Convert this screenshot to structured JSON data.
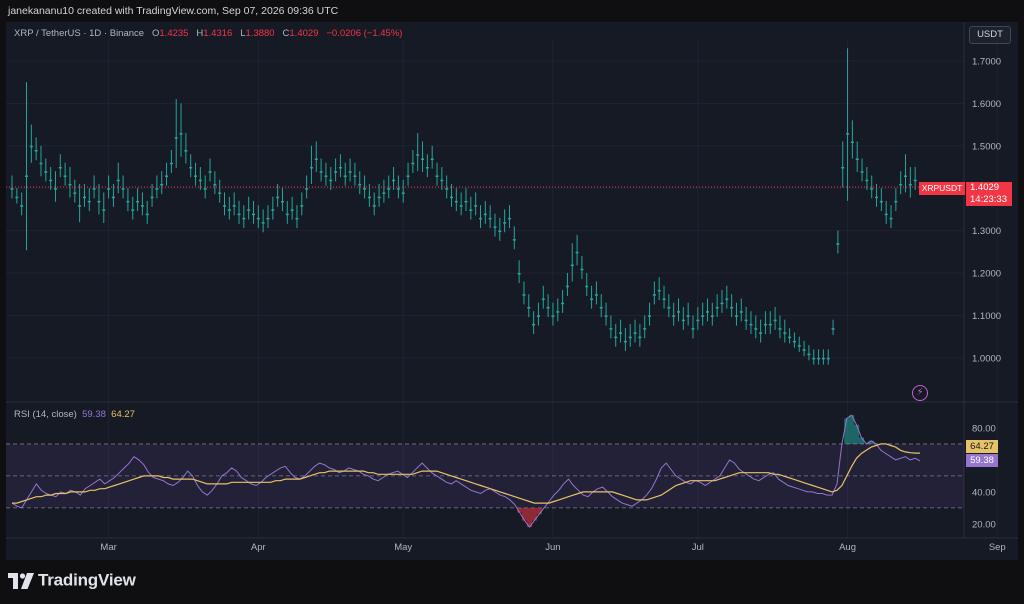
{
  "header": {
    "text": "janekananu10 created with TradingView.com, Sep 07, 2026 09:36 UTC"
  },
  "legend": {
    "symbol": "XRP / TetherUS · 1D · Binance",
    "o_label": "O",
    "o": "1.4235",
    "h_label": "H",
    "h": "1.4316",
    "l_label": "L",
    "l": "1.3880",
    "c_label": "C",
    "c": "1.4029",
    "change": "−0.0206 (−1.45%)"
  },
  "currency_button": "USDT",
  "price_badge": {
    "symbol": "XRPUSDT",
    "price": "1.4029",
    "countdown": "14:23:33"
  },
  "rsi_legend": {
    "label": "RSI (14, close)",
    "rsi": "59.38",
    "ma": "64.27"
  },
  "brand": "TradingView",
  "colors": {
    "up": "#26a69a",
    "down": "#f23645",
    "rsi": "#9575cd",
    "rsi_ma": "#e8c266",
    "background": "#161a25"
  },
  "chart_data": [
    {
      "type": "candlestick",
      "ylim": [
        0.91,
        1.74
      ],
      "yticks": [
        "1.7000",
        "1.6000",
        "1.5000",
        "1.4000",
        "1.3000",
        "1.2000",
        "1.1000",
        "1.0000"
      ],
      "ytick_values": [
        1.7,
        1.6,
        1.5,
        1.4,
        1.3,
        1.2,
        1.1,
        1.0
      ],
      "xticks": [
        {
          "label": "Mar",
          "index": 20
        },
        {
          "label": "Apr",
          "index": 51
        },
        {
          "label": "May",
          "index": 81
        },
        {
          "label": "Jun",
          "index": 112
        },
        {
          "label": "Jul",
          "index": 142
        },
        {
          "label": "Aug",
          "index": 173
        },
        {
          "label": "Sep",
          "index": 204
        }
      ],
      "last_price": 1.4029,
      "series_close": [
        1.4,
        1.38,
        1.36,
        1.43,
        1.5,
        1.49,
        1.46,
        1.44,
        1.42,
        1.4,
        1.45,
        1.43,
        1.41,
        1.39,
        1.36,
        1.38,
        1.37,
        1.4,
        1.37,
        1.35,
        1.4,
        1.38,
        1.42,
        1.4,
        1.37,
        1.35,
        1.37,
        1.36,
        1.34,
        1.38,
        1.4,
        1.41,
        1.43,
        1.46,
        1.52,
        1.53,
        1.49,
        1.45,
        1.43,
        1.42,
        1.4,
        1.44,
        1.41,
        1.39,
        1.36,
        1.35,
        1.36,
        1.34,
        1.33,
        1.35,
        1.34,
        1.33,
        1.32,
        1.33,
        1.35,
        1.38,
        1.37,
        1.34,
        1.35,
        1.33,
        1.36,
        1.4,
        1.45,
        1.47,
        1.44,
        1.43,
        1.42,
        1.44,
        1.45,
        1.43,
        1.44,
        1.43,
        1.41,
        1.4,
        1.38,
        1.36,
        1.38,
        1.39,
        1.4,
        1.42,
        1.4,
        1.39,
        1.43,
        1.46,
        1.48,
        1.47,
        1.45,
        1.47,
        1.43,
        1.42,
        1.4,
        1.38,
        1.37,
        1.36,
        1.37,
        1.35,
        1.36,
        1.33,
        1.34,
        1.33,
        1.31,
        1.3,
        1.32,
        1.33,
        1.28,
        1.2,
        1.15,
        1.12,
        1.08,
        1.1,
        1.14,
        1.12,
        1.1,
        1.11,
        1.13,
        1.17,
        1.22,
        1.25,
        1.21,
        1.17,
        1.14,
        1.15,
        1.12,
        1.1,
        1.07,
        1.05,
        1.06,
        1.04,
        1.05,
        1.06,
        1.05,
        1.07,
        1.1,
        1.15,
        1.16,
        1.14,
        1.12,
        1.1,
        1.11,
        1.09,
        1.1,
        1.07,
        1.09,
        1.1,
        1.11,
        1.1,
        1.12,
        1.13,
        1.14,
        1.12,
        1.1,
        1.11,
        1.09,
        1.08,
        1.07,
        1.06,
        1.08,
        1.08,
        1.09,
        1.07,
        1.06,
        1.05,
        1.04,
        1.03,
        1.02,
        1.01,
        1.0,
        1.0,
        1.0,
        1.0,
        1.07,
        1.27,
        1.45,
        1.53,
        1.51,
        1.47,
        1.44,
        1.42,
        1.4,
        1.38,
        1.37,
        1.34,
        1.33,
        1.37,
        1.41,
        1.43,
        1.41,
        1.42,
        1.4
      ],
      "series_open": [
        1.4,
        1.38,
        1.36,
        1.43,
        1.5,
        1.49,
        1.46,
        1.44,
        1.42,
        1.4,
        1.45,
        1.43,
        1.41,
        1.39,
        1.36,
        1.38,
        1.37,
        1.4,
        1.37,
        1.35,
        1.4,
        1.38,
        1.42,
        1.4,
        1.37,
        1.35,
        1.37,
        1.36,
        1.34,
        1.38,
        1.4,
        1.41,
        1.43,
        1.46,
        1.52,
        1.53,
        1.49,
        1.45,
        1.43,
        1.42,
        1.4,
        1.44,
        1.41,
        1.39,
        1.36,
        1.35,
        1.36,
        1.34,
        1.33,
        1.35,
        1.34,
        1.33,
        1.32,
        1.33,
        1.35,
        1.38,
        1.37,
        1.34,
        1.35,
        1.33,
        1.36,
        1.4,
        1.45,
        1.47,
        1.44,
        1.43,
        1.42,
        1.44,
        1.45,
        1.43,
        1.44,
        1.43,
        1.41,
        1.4,
        1.38,
        1.36,
        1.38,
        1.39,
        1.4,
        1.42,
        1.4,
        1.39,
        1.43,
        1.46,
        1.48,
        1.47,
        1.45,
        1.47,
        1.43,
        1.42,
        1.4,
        1.38,
        1.37,
        1.36,
        1.37,
        1.35,
        1.36,
        1.33,
        1.34,
        1.33,
        1.31,
        1.3,
        1.32,
        1.33,
        1.28,
        1.2,
        1.15,
        1.12,
        1.08,
        1.1,
        1.14,
        1.12,
        1.1,
        1.11,
        1.13,
        1.17,
        1.22,
        1.25,
        1.21,
        1.17,
        1.14,
        1.15,
        1.12,
        1.1,
        1.07,
        1.05,
        1.06,
        1.04,
        1.05,
        1.06,
        1.05,
        1.07,
        1.1,
        1.15,
        1.16,
        1.14,
        1.12,
        1.1,
        1.11,
        1.09,
        1.1,
        1.07,
        1.09,
        1.1,
        1.11,
        1.1,
        1.12,
        1.13,
        1.14,
        1.12,
        1.1,
        1.11,
        1.09,
        1.08,
        1.07,
        1.06,
        1.08,
        1.08,
        1.09,
        1.07,
        1.06,
        1.05,
        1.04,
        1.03,
        1.02,
        1.01,
        1.0,
        1.0,
        1.0,
        1.0,
        1.07,
        1.27,
        1.45,
        1.53,
        1.51,
        1.47,
        1.44,
        1.42,
        1.4,
        1.38,
        1.37,
        1.34,
        1.33,
        1.37,
        1.41,
        1.43,
        1.41,
        1.42
      ],
      "wick_pad": [
        0.03,
        0.02,
        0.03,
        0.22,
        0.05,
        0.03,
        0.04,
        0.03,
        0.03,
        0.04,
        0.03,
        0.03,
        0.04,
        0.03,
        0.05,
        0.03,
        0.03,
        0.03,
        0.04,
        0.04,
        0.03,
        0.03,
        0.04,
        0.03,
        0.03,
        0.03,
        0.03,
        0.03,
        0.03,
        0.03,
        0.03,
        0.03,
        0.03,
        0.03,
        0.09,
        0.07,
        0.04,
        0.03,
        0.03,
        0.03,
        0.03,
        0.03,
        0.03,
        0.03,
        0.03,
        0.03,
        0.03,
        0.03,
        0.03,
        0.03,
        0.03,
        0.03,
        0.03,
        0.03,
        0.03,
        0.03,
        0.03,
        0.03,
        0.03,
        0.03,
        0.03,
        0.03,
        0.05,
        0.04,
        0.03,
        0.03,
        0.03,
        0.03,
        0.03,
        0.03,
        0.03,
        0.03,
        0.03,
        0.03,
        0.03,
        0.03,
        0.03,
        0.03,
        0.03,
        0.03,
        0.03,
        0.03,
        0.03,
        0.03,
        0.05,
        0.04,
        0.03,
        0.03,
        0.03,
        0.03,
        0.03,
        0.03,
        0.03,
        0.03,
        0.03,
        0.03,
        0.03,
        0.03,
        0.03,
        0.03,
        0.03,
        0.03,
        0.03,
        0.03,
        0.03,
        0.03,
        0.03,
        0.03,
        0.03,
        0.03,
        0.03,
        0.03,
        0.03,
        0.03,
        0.03,
        0.03,
        0.05,
        0.04,
        0.03,
        0.03,
        0.03,
        0.03,
        0.03,
        0.03,
        0.03,
        0.03,
        0.03,
        0.03,
        0.03,
        0.03,
        0.03,
        0.03,
        0.03,
        0.03,
        0.03,
        0.03,
        0.03,
        0.03,
        0.03,
        0.03,
        0.03,
        0.03,
        0.03,
        0.03,
        0.03,
        0.03,
        0.03,
        0.03,
        0.03,
        0.03,
        0.03,
        0.03,
        0.03,
        0.03,
        0.03,
        0.03,
        0.03,
        0.03,
        0.03,
        0.03,
        0.03,
        0.02,
        0.02,
        0.02,
        0.02,
        0.02,
        0.02,
        0.02,
        0.02,
        0.02,
        0.02,
        0.03,
        0.06,
        0.2,
        0.05,
        0.04,
        0.03,
        0.03,
        0.03,
        0.03,
        0.03,
        0.03,
        0.03,
        0.03,
        0.03,
        0.05,
        0.04,
        0.03,
        0.03,
        0.03
      ]
    },
    {
      "type": "line",
      "ylim": [
        13,
        90
      ],
      "yticks": [
        "80.00",
        "40.00",
        "20.00"
      ],
      "ytick_values": [
        80,
        40,
        20
      ],
      "band": [
        30,
        70
      ],
      "midline": 50,
      "series": [
        {
          "name": "RSI",
          "values": [
            33,
            31,
            30,
            35,
            40,
            45,
            41,
            39,
            38,
            37,
            40,
            39,
            41,
            40,
            38,
            42,
            44,
            46,
            48,
            45,
            47,
            49,
            52,
            55,
            58,
            62,
            60,
            57,
            52,
            49,
            48,
            47,
            45,
            44,
            46,
            49,
            53,
            50,
            44,
            40,
            38,
            41,
            45,
            50,
            52,
            55,
            53,
            49,
            47,
            45,
            44,
            46,
            49,
            51,
            53,
            55,
            56,
            52,
            49,
            48,
            50,
            53,
            56,
            58,
            57,
            55,
            54,
            52,
            53,
            55,
            54,
            53,
            51,
            50,
            48,
            47,
            49,
            51,
            52,
            53,
            51,
            49,
            52,
            55,
            58,
            55,
            52,
            50,
            48,
            46,
            45,
            47,
            45,
            43,
            41,
            40,
            39,
            41,
            42,
            40,
            38,
            37,
            35,
            32,
            27,
            22,
            18,
            22,
            26,
            30,
            34,
            38,
            41,
            45,
            48,
            44,
            41,
            38,
            37,
            40,
            42,
            43,
            40,
            37,
            35,
            33,
            32,
            31,
            33,
            35,
            38,
            42,
            48,
            55,
            58,
            54,
            50,
            48,
            46,
            45,
            47,
            46,
            44,
            46,
            48,
            50,
            55,
            60,
            58,
            54,
            52,
            50,
            48,
            47,
            49,
            51,
            52,
            48,
            46,
            44,
            43,
            42,
            41,
            40,
            40,
            39,
            39,
            38,
            38,
            45,
            70,
            86,
            88,
            82,
            74,
            70,
            72,
            70,
            66,
            64,
            62,
            60,
            61,
            62,
            60,
            61,
            59.38
          ]
        },
        {
          "name": "RSI-based MA",
          "values": [
            33,
            33,
            34,
            35,
            36,
            37,
            37,
            38,
            38,
            39,
            39,
            39,
            40,
            40,
            40,
            40,
            41,
            41,
            42,
            42,
            43,
            44,
            45,
            46,
            47,
            48,
            49,
            50,
            50,
            50,
            50,
            49,
            49,
            48,
            48,
            48,
            48,
            48,
            47,
            46,
            45,
            45,
            45,
            45,
            45,
            46,
            46,
            46,
            46,
            46,
            46,
            46,
            46,
            46,
            47,
            47,
            48,
            48,
            48,
            48,
            49,
            50,
            51,
            52,
            52,
            53,
            53,
            53,
            53,
            53,
            53,
            53,
            53,
            52,
            52,
            51,
            51,
            51,
            51,
            51,
            51,
            51,
            51,
            52,
            53,
            53,
            53,
            53,
            52,
            51,
            50,
            49,
            48,
            47,
            46,
            45,
            44,
            43,
            42,
            41,
            40,
            39,
            38,
            37,
            36,
            35,
            34,
            33,
            33,
            33,
            33,
            34,
            35,
            36,
            37,
            38,
            39,
            40,
            40,
            40,
            40,
            40,
            40,
            40,
            39,
            38,
            37,
            36,
            35,
            35,
            35,
            36,
            37,
            38,
            40,
            42,
            44,
            45,
            46,
            47,
            47,
            47,
            47,
            47,
            47,
            48,
            49,
            50,
            51,
            52,
            52,
            52,
            52,
            52,
            52,
            52,
            51,
            51,
            50,
            49,
            48,
            47,
            46,
            45,
            44,
            43,
            42,
            41,
            40,
            41,
            44,
            50,
            56,
            61,
            64,
            66,
            68,
            69,
            70,
            70,
            69,
            68,
            66,
            65,
            64.5,
            64.3,
            64.27
          ]
        }
      ]
    }
  ]
}
